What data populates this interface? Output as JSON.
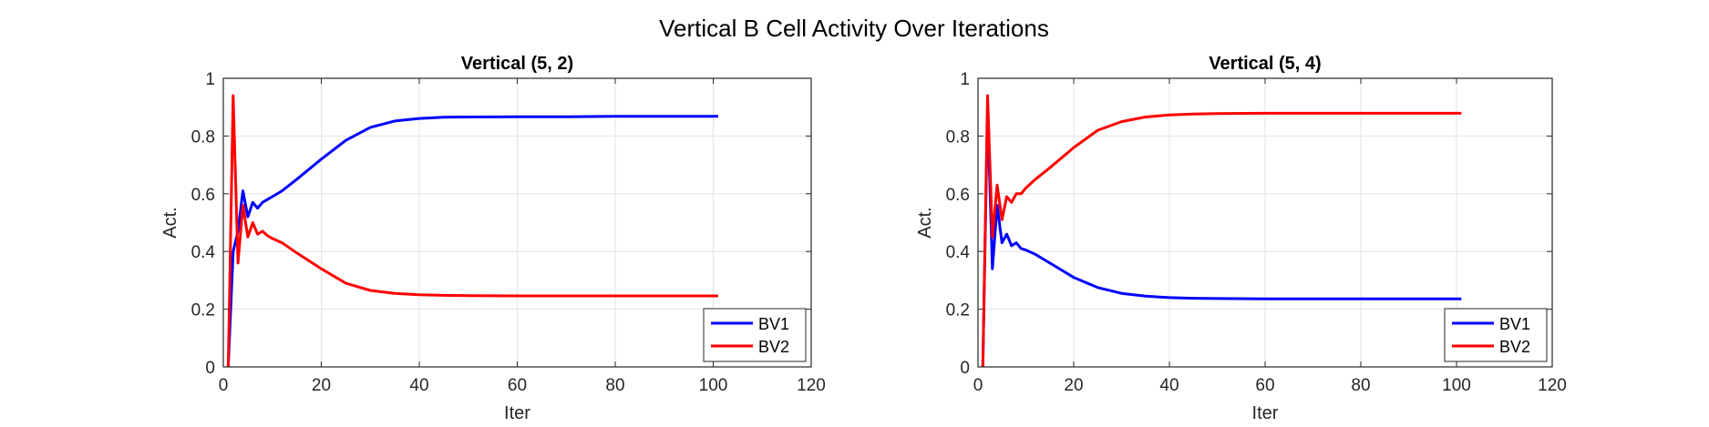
{
  "figure_title": "Vertical B Cell Activity Over Iterations",
  "chart_data": [
    {
      "type": "line",
      "title": "Vertical (5, 2)",
      "xlabel": "Iter",
      "ylabel": "Act.",
      "xlim": [
        0,
        120
      ],
      "ylim": [
        0,
        1
      ],
      "xticks": [
        0,
        20,
        40,
        60,
        80,
        100,
        120
      ],
      "yticks": [
        0,
        0.2,
        0.4,
        0.6,
        0.8,
        1
      ],
      "grid": true,
      "legend_location": "bottom-right",
      "series": [
        {
          "name": "BV1",
          "color": "#0000ff",
          "x": [
            1,
            2,
            3,
            4,
            5,
            6,
            7,
            8,
            9,
            10,
            12,
            15,
            20,
            25,
            30,
            35,
            40,
            45,
            50,
            60,
            70,
            80,
            90,
            101
          ],
          "y": [
            0,
            0.4,
            0.47,
            0.61,
            0.52,
            0.57,
            0.55,
            0.57,
            0.58,
            0.59,
            0.61,
            0.65,
            0.72,
            0.785,
            0.83,
            0.852,
            0.861,
            0.865,
            0.866,
            0.867,
            0.867,
            0.868,
            0.868,
            0.868
          ]
        },
        {
          "name": "BV2",
          "color": "#ff0000",
          "x": [
            1,
            2,
            3,
            4,
            5,
            6,
            7,
            8,
            9,
            10,
            12,
            15,
            20,
            25,
            30,
            35,
            40,
            45,
            50,
            60,
            70,
            80,
            90,
            101
          ],
          "y": [
            0,
            0.94,
            0.36,
            0.56,
            0.45,
            0.5,
            0.46,
            0.47,
            0.455,
            0.445,
            0.43,
            0.395,
            0.34,
            0.29,
            0.265,
            0.255,
            0.25,
            0.248,
            0.247,
            0.246,
            0.246,
            0.246,
            0.246,
            0.246
          ]
        }
      ]
    },
    {
      "type": "line",
      "title": "Vertical (5, 4)",
      "xlabel": "Iter",
      "ylabel": "Act.",
      "xlim": [
        0,
        120
      ],
      "ylim": [
        0,
        1
      ],
      "xticks": [
        0,
        20,
        40,
        60,
        80,
        100,
        120
      ],
      "yticks": [
        0,
        0.2,
        0.4,
        0.6,
        0.8,
        1
      ],
      "grid": true,
      "legend_location": "bottom-right",
      "series": [
        {
          "name": "BV1",
          "color": "#0000ff",
          "x": [
            1,
            2,
            3,
            4,
            5,
            6,
            7,
            8,
            9,
            10,
            12,
            15,
            20,
            25,
            30,
            35,
            40,
            45,
            50,
            60,
            70,
            80,
            90,
            101
          ],
          "y": [
            0,
            0.9,
            0.34,
            0.56,
            0.43,
            0.46,
            0.42,
            0.43,
            0.41,
            0.405,
            0.39,
            0.36,
            0.31,
            0.275,
            0.255,
            0.245,
            0.24,
            0.238,
            0.237,
            0.236,
            0.236,
            0.236,
            0.236,
            0.236
          ]
        },
        {
          "name": "BV2",
          "color": "#ff0000",
          "x": [
            1,
            2,
            3,
            4,
            5,
            6,
            7,
            8,
            9,
            10,
            12,
            15,
            20,
            25,
            30,
            35,
            40,
            45,
            50,
            60,
            70,
            80,
            90,
            101
          ],
          "y": [
            0,
            0.94,
            0.45,
            0.63,
            0.51,
            0.59,
            0.57,
            0.6,
            0.6,
            0.62,
            0.65,
            0.69,
            0.76,
            0.82,
            0.85,
            0.866,
            0.873,
            0.876,
            0.878,
            0.879,
            0.879,
            0.879,
            0.879,
            0.879
          ]
        }
      ]
    }
  ]
}
